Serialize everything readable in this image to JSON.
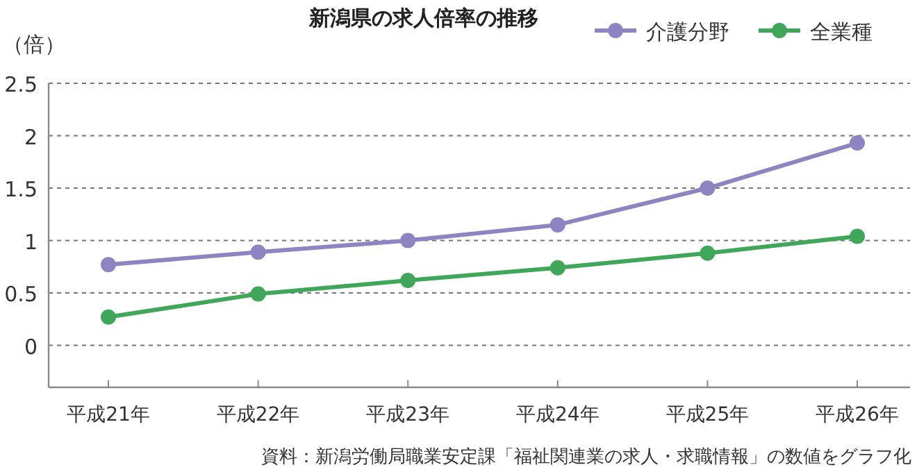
{
  "chart_data": {
    "type": "line",
    "title": "新潟県の求人倍率の推移",
    "ylabel": "（倍）",
    "categories": [
      "平成21年",
      "平成22年",
      "平成23年",
      "平成24年",
      "平成25年",
      "平成26年"
    ],
    "series": [
      {
        "name": "介護分野",
        "color": "#8f84c1",
        "values": [
          0.77,
          0.89,
          1.0,
          1.15,
          1.5,
          1.93
        ]
      },
      {
        "name": "全業種",
        "color": "#3fa65a",
        "values": [
          0.27,
          0.49,
          0.62,
          0.74,
          0.88,
          1.04
        ]
      }
    ],
    "ylim": [
      -0.4,
      2.5
    ],
    "yticks": [
      0,
      0.5,
      1,
      1.5,
      2,
      2.5
    ],
    "grid": "y",
    "legend": "top right",
    "marker": "circle",
    "line_style": "solid",
    "annotations": [
      "資料：新潟労働局職業安定課「福祉関連業の求人・求職情報」の数値をグラフ化"
    ]
  }
}
